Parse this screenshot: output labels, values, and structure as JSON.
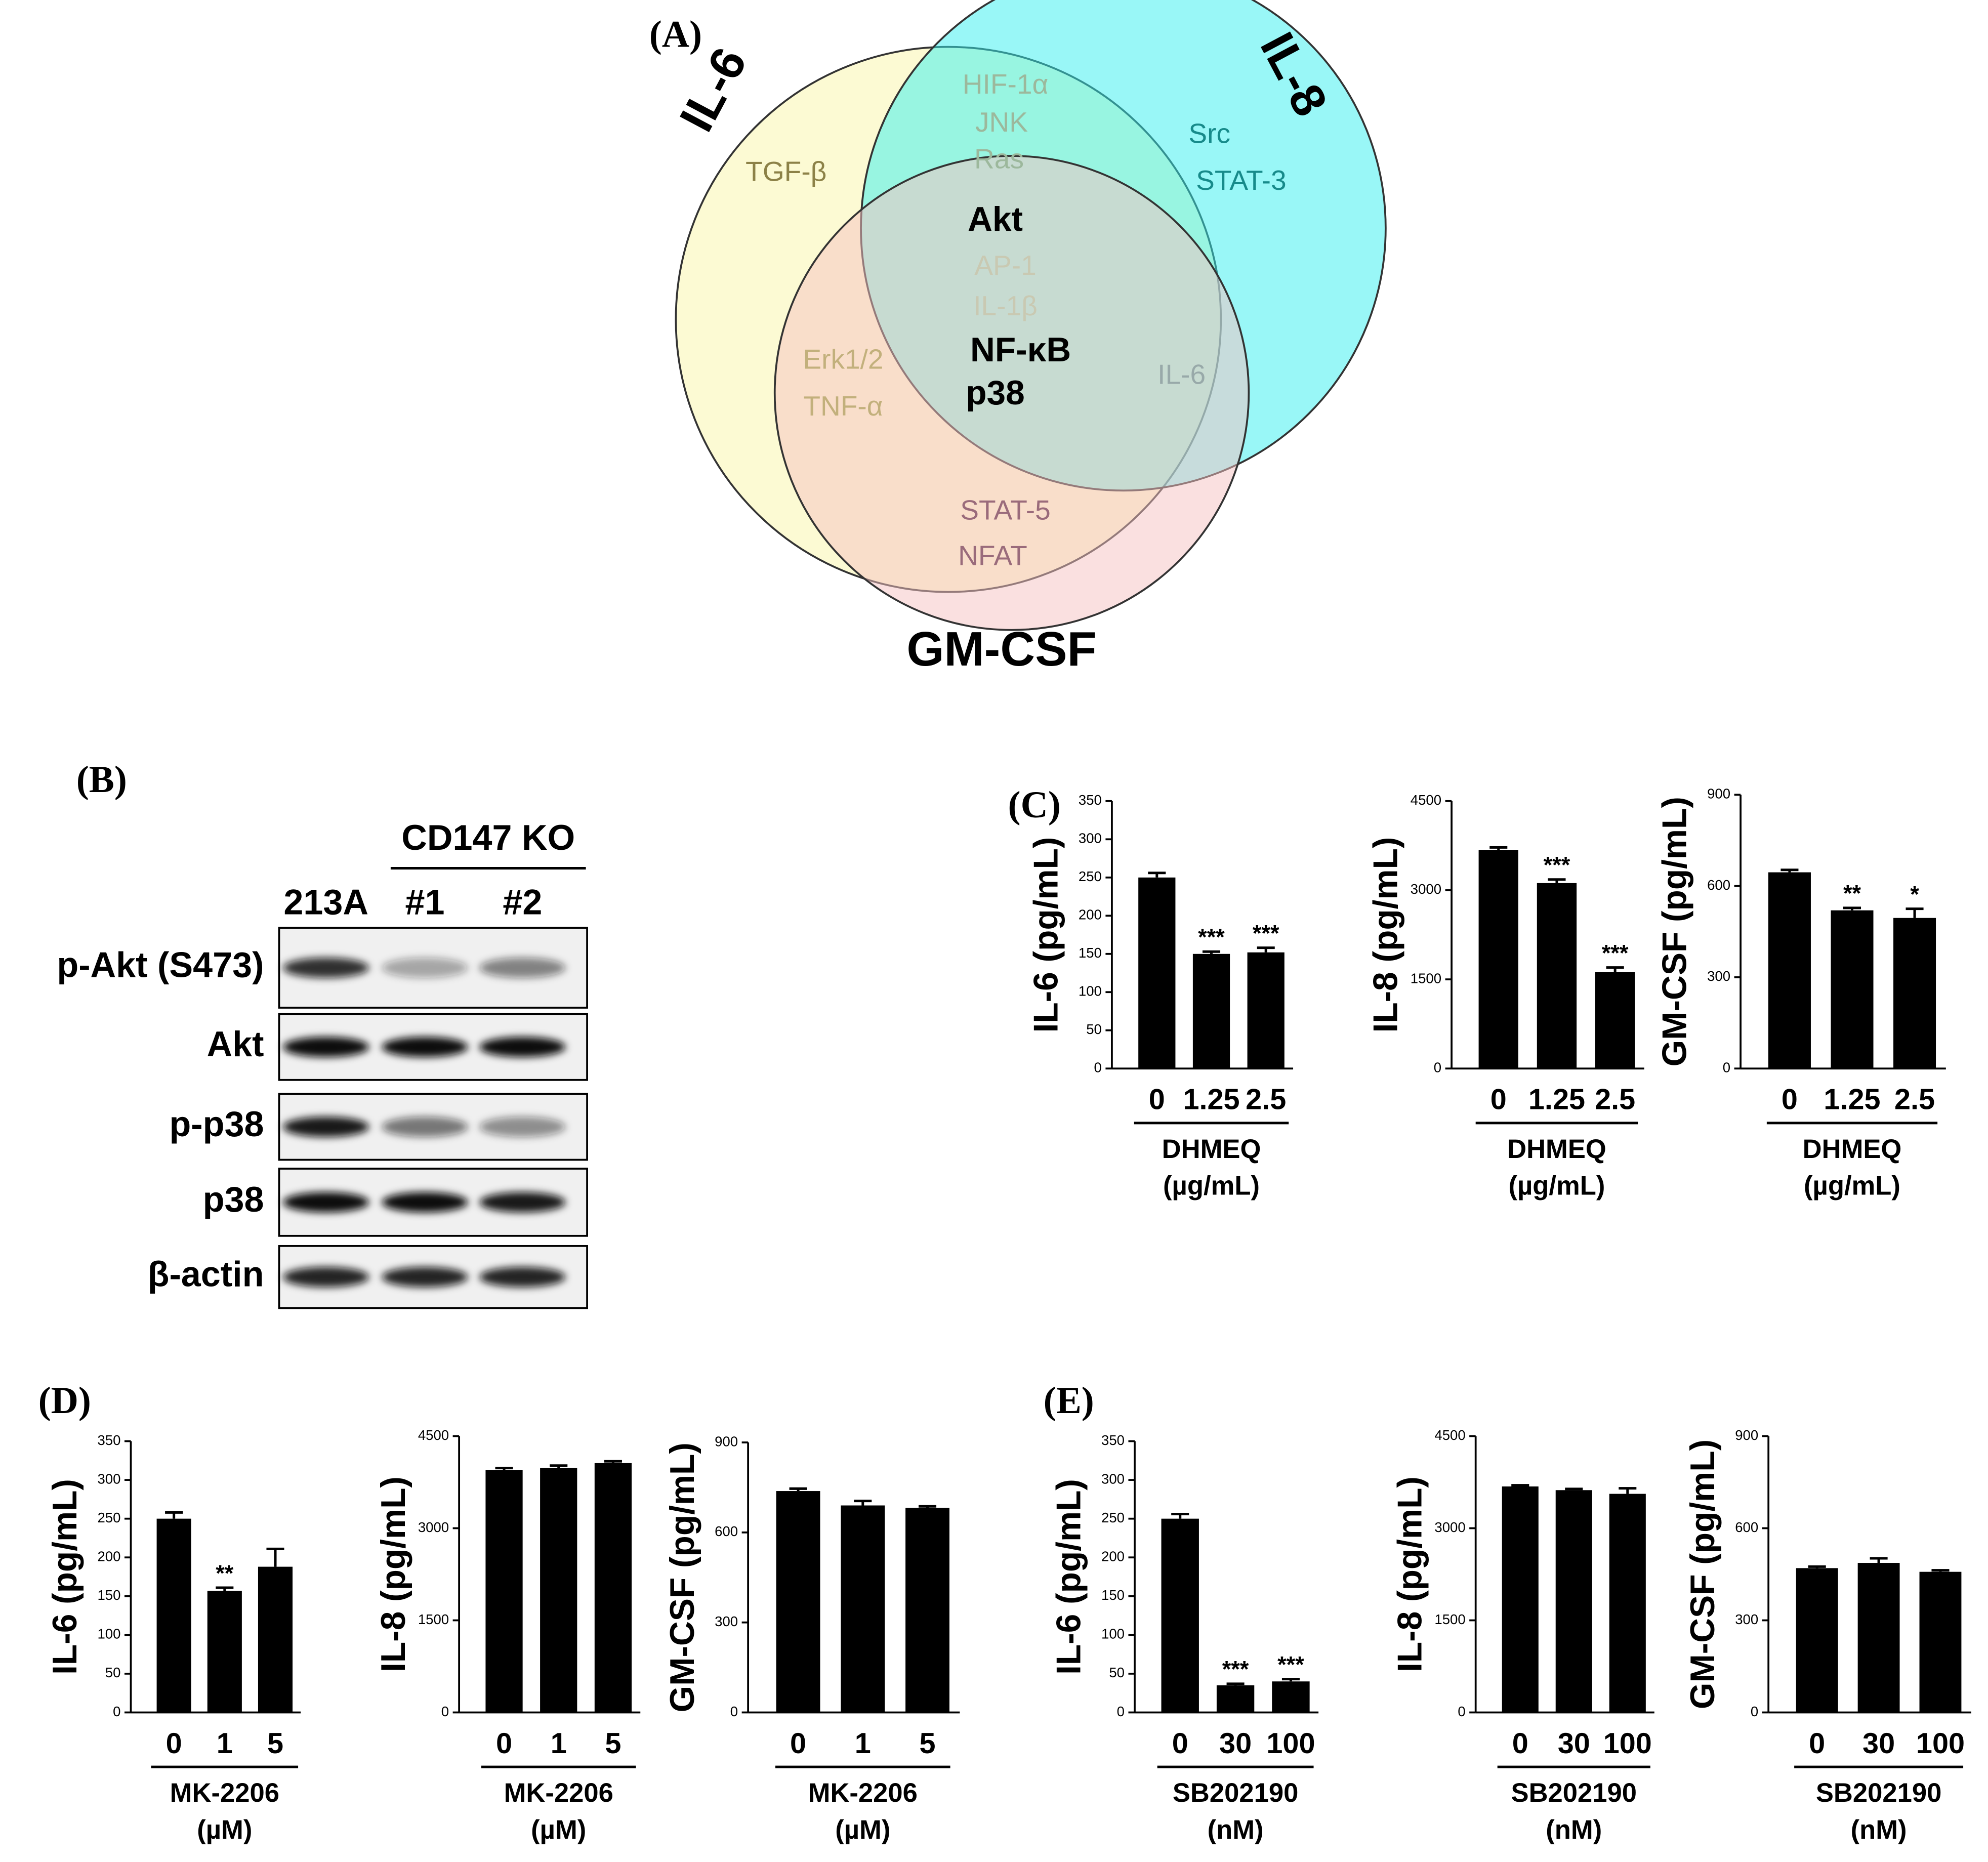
{
  "panels": [
    "(A)",
    "(B)",
    "(C)",
    "(D)",
    "(E)"
  ],
  "venn": {
    "sets": [
      {
        "name": "IL-6",
        "color": "#faf6a8"
      },
      {
        "name": "IL-8",
        "color": "#33f0f0"
      },
      {
        "name": "GM-CSF",
        "color": "#f6c2c2"
      }
    ],
    "items": [
      {
        "text": "TGF-β",
        "color": "#8c8147"
      },
      {
        "text": "HIF-1α",
        "color": "#9cb89c"
      },
      {
        "text": "JNK",
        "color": "#9cb89c"
      },
      {
        "text": "Ras",
        "color": "#9cb89c"
      },
      {
        "text": "Src",
        "color": "#178a8a"
      },
      {
        "text": "STAT-3",
        "color": "#178a8a"
      },
      {
        "text": "Akt",
        "color": "#000000"
      },
      {
        "text": "AP-1",
        "color": "#c9c9b2"
      },
      {
        "text": "IL-1β",
        "color": "#c9c9b2"
      },
      {
        "text": "NF-κB",
        "color": "#000000"
      },
      {
        "text": "p38",
        "color": "#000000"
      },
      {
        "text": "Erk1/2",
        "color": "#c2b07c"
      },
      {
        "text": "TNF-α",
        "color": "#c2b07c"
      },
      {
        "text": "IL-6",
        "color": "#98a9a9"
      },
      {
        "text": "STAT-5",
        "color": "#9a6b7b"
      },
      {
        "text": "NFAT",
        "color": "#9a6b7b"
      }
    ]
  },
  "blot": {
    "group": "CD147 KO",
    "lanes": [
      "213A",
      "#1",
      "#2"
    ],
    "rows": [
      "p-Akt (S473)",
      "Akt",
      "p-p38",
      "p38",
      "β-actin"
    ]
  },
  "chart_data": [
    {
      "type": "bar",
      "ylabel": "IL-6 (pg/mL)",
      "xlabel": [
        "DHMEQ",
        "(µg/mL)"
      ],
      "categories": [
        "0",
        "1.25",
        "2.5"
      ],
      "values": [
        250,
        150,
        152
      ],
      "errors": [
        6,
        3,
        6
      ],
      "annotations": [
        null,
        "***",
        "***"
      ],
      "color": "#000000",
      "ylim": [
        0,
        350
      ],
      "yticks": [
        0,
        50,
        100,
        150,
        200,
        250,
        300,
        350
      ]
    },
    {
      "type": "bar",
      "ylabel": "IL-8 (pg/mL)",
      "xlabel": [
        "DHMEQ",
        "(µg/mL)"
      ],
      "categories": [
        "0",
        "1.25",
        "2.5"
      ],
      "values": [
        3680,
        3120,
        1620
      ],
      "errors": [
        40,
        60,
        80
      ],
      "annotations": [
        null,
        "***",
        "***"
      ],
      "color": "#000000",
      "ylim": [
        0,
        4500
      ],
      "yticks": [
        0,
        1500,
        3000,
        4500
      ]
    },
    {
      "type": "bar",
      "ylabel": "GM-CSF (pg/mL)",
      "xlabel": [
        "DHMEQ",
        "(µg/mL)"
      ],
      "categories": [
        "0",
        "1.25",
        "2.5"
      ],
      "values": [
        645,
        520,
        495
      ],
      "errors": [
        8,
        8,
        30
      ],
      "annotations": [
        null,
        "**",
        "*"
      ],
      "color": "#000000",
      "ylim": [
        0,
        900
      ],
      "yticks": [
        0,
        300,
        600,
        900
      ]
    },
    {
      "type": "bar",
      "ylabel": "IL-6 (pg/mL)",
      "xlabel": [
        "MK-2206",
        "(µM)"
      ],
      "categories": [
        "0",
        "1",
        "5"
      ],
      "values": [
        250,
        157,
        188
      ],
      "errors": [
        8,
        4,
        23
      ],
      "annotations": [
        null,
        "**",
        null
      ],
      "color": "#000000",
      "ylim": [
        0,
        350
      ],
      "yticks": [
        0,
        50,
        100,
        150,
        200,
        250,
        300,
        350
      ]
    },
    {
      "type": "bar",
      "ylabel": "IL-8 (pg/mL)",
      "xlabel": [
        "MK-2206",
        "(µM)"
      ],
      "categories": [
        "0",
        "1",
        "5"
      ],
      "values": [
        3950,
        3980,
        4060
      ],
      "errors": [
        30,
        40,
        30
      ],
      "annotations": [
        null,
        null,
        null
      ],
      "color": "#000000",
      "ylim": [
        0,
        4500
      ],
      "yticks": [
        0,
        1500,
        3000,
        4500
      ]
    },
    {
      "type": "bar",
      "ylabel": "GM-CSF (pg/mL)",
      "xlabel": [
        "MK-2206",
        "(µM)"
      ],
      "categories": [
        "0",
        "1",
        "5"
      ],
      "values": [
        738,
        690,
        682
      ],
      "errors": [
        8,
        15,
        5
      ],
      "annotations": [
        null,
        null,
        null
      ],
      "color": "#000000",
      "ylim": [
        0,
        900
      ],
      "yticks": [
        0,
        300,
        600,
        900
      ]
    },
    {
      "type": "bar",
      "ylabel": "IL-6 (pg/mL)",
      "xlabel": [
        "SB202190",
        "(nM)"
      ],
      "categories": [
        "0",
        "30",
        "100"
      ],
      "values": [
        250,
        35,
        40
      ],
      "errors": [
        6,
        2,
        3
      ],
      "annotations": [
        null,
        "***",
        "***"
      ],
      "color": "#000000",
      "ylim": [
        0,
        350
      ],
      "yticks": [
        0,
        50,
        100,
        150,
        200,
        250,
        300,
        350
      ]
    },
    {
      "type": "bar",
      "ylabel": "IL-8 (pg/mL)",
      "xlabel": [
        "SB202190",
        "(nM)"
      ],
      "categories": [
        "0",
        "30",
        "100"
      ],
      "values": [
        3680,
        3620,
        3560
      ],
      "errors": [
        20,
        20,
        90
      ],
      "annotations": [
        null,
        null,
        null
      ],
      "color": "#000000",
      "ylim": [
        0,
        4500
      ],
      "yticks": [
        0,
        1500,
        3000,
        4500
      ]
    },
    {
      "type": "bar",
      "ylabel": "GM-CSF (pg/mL)",
      "xlabel": [
        "SB202190",
        "(nM)"
      ],
      "categories": [
        "0",
        "30",
        "100"
      ],
      "values": [
        470,
        487,
        458
      ],
      "errors": [
        5,
        15,
        5
      ],
      "annotations": [
        null,
        null,
        null
      ],
      "color": "#000000",
      "ylim": [
        0,
        900
      ],
      "yticks": [
        0,
        300,
        600,
        900
      ]
    }
  ]
}
